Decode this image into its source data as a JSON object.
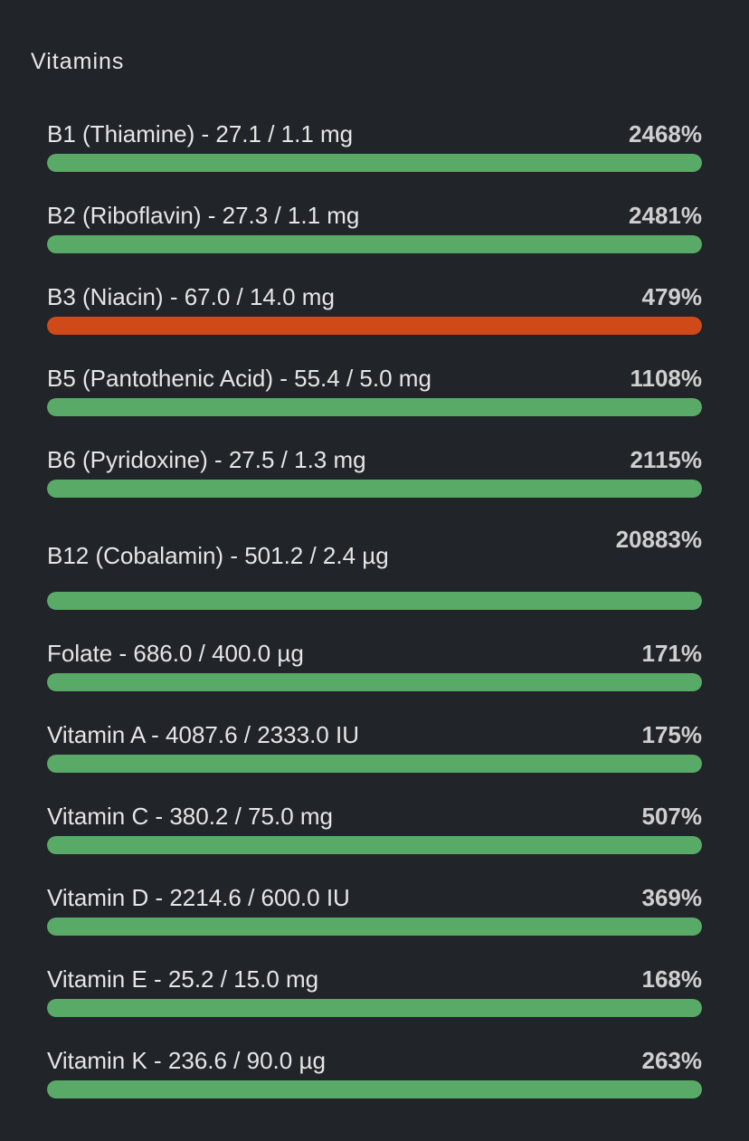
{
  "section": {
    "title": "Vitamins"
  },
  "colors": {
    "ok": "#5aaa67",
    "warn": "#cf4a18",
    "track": "#3a3e44"
  },
  "items": [
    {
      "label": "B1 (Thiamine) - 27.1 / 1.1 mg",
      "percent": "2468%",
      "fill": 1.0,
      "status": "ok"
    },
    {
      "label": "B2 (Riboflavin) - 27.3 / 1.1 mg",
      "percent": "2481%",
      "fill": 1.0,
      "status": "ok"
    },
    {
      "label": "B3 (Niacin) - 67.0 / 14.0 mg",
      "percent": "479%",
      "fill": 1.0,
      "status": "warn"
    },
    {
      "label": "B5 (Pantothenic Acid) - 55.4 / 5.0 mg",
      "percent": "1108%",
      "fill": 1.0,
      "status": "ok"
    },
    {
      "label": "B6 (Pyridoxine) - 27.5 / 1.3 mg",
      "percent": "2115%",
      "fill": 1.0,
      "status": "ok"
    },
    {
      "label": "B12 (Cobalamin) - 501.2 / 2.4 µg",
      "percent": "20883%",
      "fill": 1.0,
      "status": "ok"
    },
    {
      "label": "Folate - 686.0 / 400.0 µg",
      "percent": "171%",
      "fill": 1.0,
      "status": "ok"
    },
    {
      "label": "Vitamin A - 4087.6 / 2333.0 IU",
      "percent": "175%",
      "fill": 1.0,
      "status": "ok"
    },
    {
      "label": "Vitamin C - 380.2 / 75.0 mg",
      "percent": "507%",
      "fill": 1.0,
      "status": "ok"
    },
    {
      "label": "Vitamin D - 2214.6 / 600.0 IU",
      "percent": "369%",
      "fill": 1.0,
      "status": "ok"
    },
    {
      "label": "Vitamin E - 25.2 / 15.0 mg",
      "percent": "168%",
      "fill": 1.0,
      "status": "ok"
    },
    {
      "label": "Vitamin K - 236.6 / 90.0 µg",
      "percent": "263%",
      "fill": 1.0,
      "status": "ok"
    }
  ]
}
